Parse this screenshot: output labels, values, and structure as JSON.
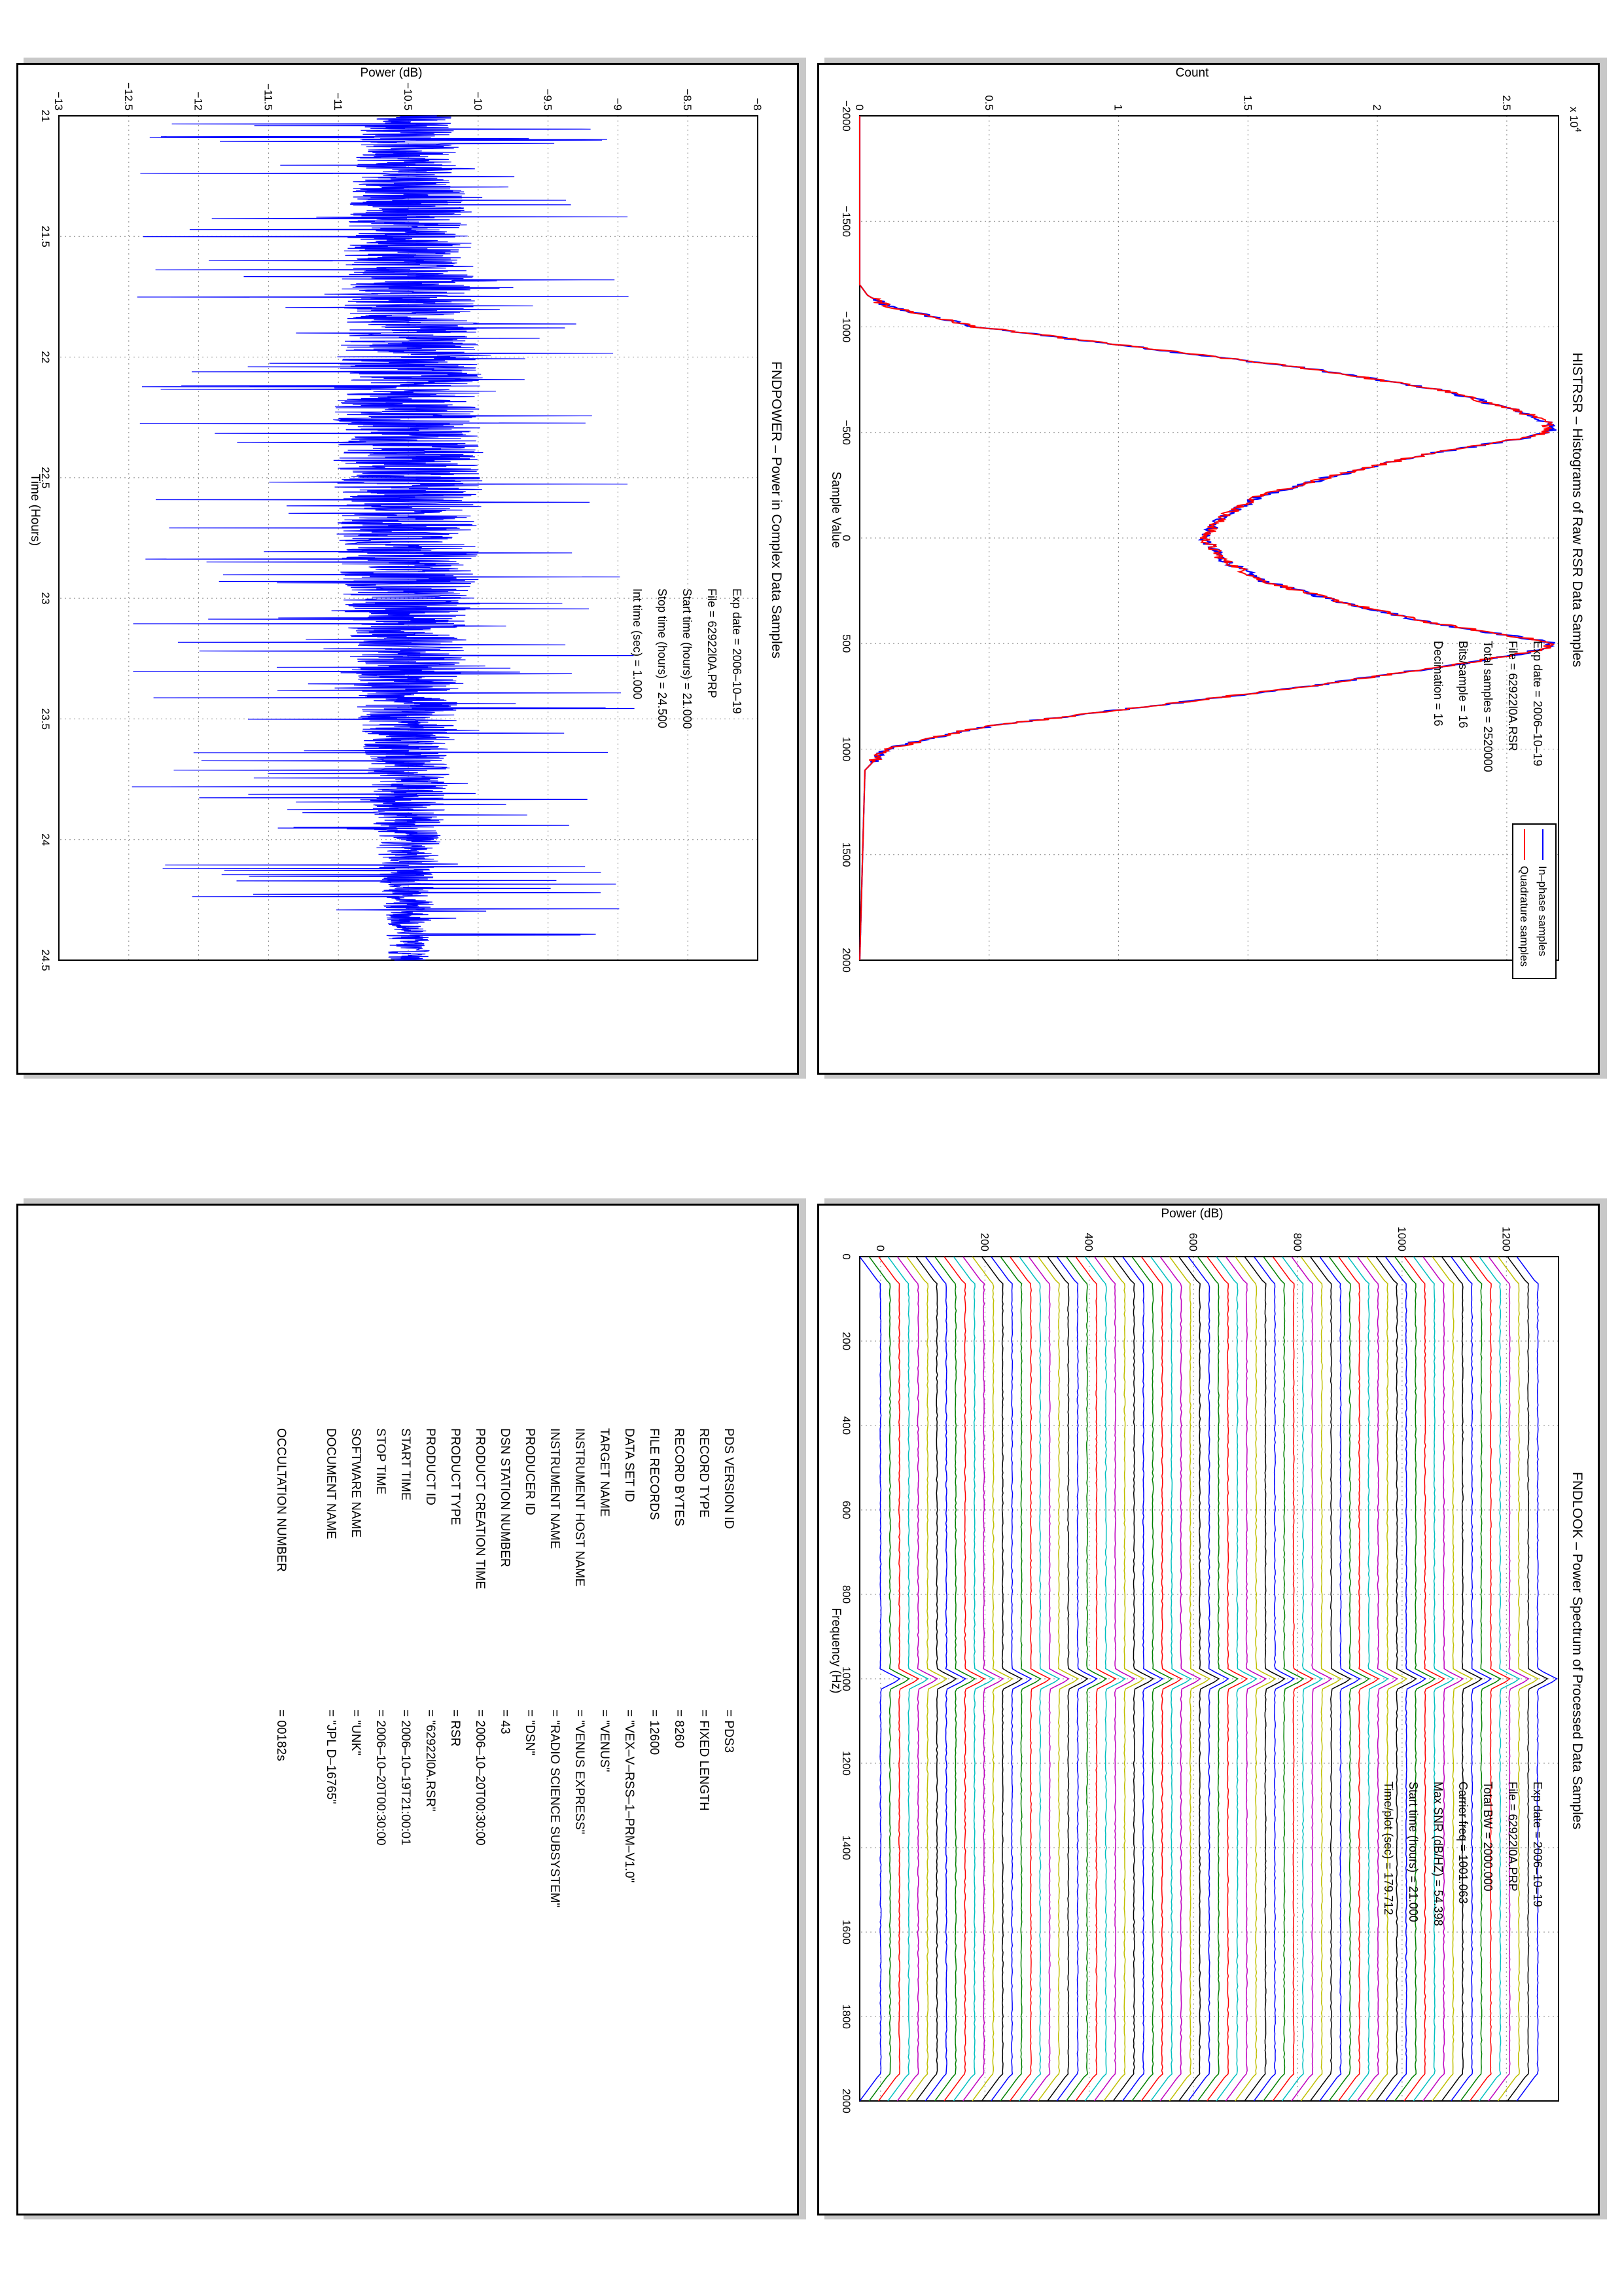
{
  "colors": {
    "inphase": "#0000ff",
    "quadrature": "#ff0000",
    "power": "#0000ff",
    "spectrum_palette": [
      "#0000ff",
      "#008000",
      "#ff0000",
      "#00bfbf",
      "#bf00bf",
      "#bfbf00",
      "#000000"
    ]
  },
  "chart_data": [
    {
      "type": "line",
      "title": "HISTRSR – Histograms of Raw RSR Data Samples",
      "xlabel": "Sample Value",
      "ylabel": "Count",
      "y_multiplier": "x 10",
      "y_multiplier_exp": "4",
      "xlim": [
        -2000,
        2000
      ],
      "ylim": [
        0,
        2.7
      ],
      "x_ticks": [
        "-2000",
        "-1500",
        "-1000",
        "-500",
        "0",
        "500",
        "1000",
        "1500",
        "2000"
      ],
      "y_ticks": [
        "0",
        "0.5",
        "1",
        "1.5",
        "2",
        "2.5"
      ],
      "grid": true,
      "legend_position": "top-right",
      "series": [
        {
          "name": "In–phase samples",
          "color": "blue",
          "x": [
            -2000,
            -1200,
            -1150,
            -1100,
            -1000,
            -900,
            -800,
            -700,
            -600,
            -550,
            -520,
            -500,
            -480,
            -450,
            -400,
            -300,
            -200,
            -100,
            0,
            100,
            200,
            300,
            400,
            450,
            480,
            500,
            520,
            550,
            600,
            700,
            800,
            900,
            1000,
            1100,
            2000
          ],
          "y": [
            0,
            0,
            0.03,
            0.1,
            0.45,
            1.1,
            1.75,
            2.25,
            2.55,
            2.65,
            2.68,
            2.66,
            2.6,
            2.45,
            2.2,
            1.85,
            1.55,
            1.4,
            1.33,
            1.4,
            1.55,
            1.85,
            2.2,
            2.45,
            2.6,
            2.68,
            2.66,
            2.55,
            2.3,
            1.75,
            1.1,
            0.45,
            0.1,
            0.02,
            0
          ]
        },
        {
          "name": "Quadrature samples",
          "color": "red",
          "x": [
            -2000,
            -1200,
            -1150,
            -1100,
            -1000,
            -900,
            -800,
            -700,
            -600,
            -550,
            -520,
            -500,
            -480,
            -450,
            -400,
            -300,
            -200,
            -100,
            0,
            100,
            200,
            300,
            400,
            450,
            480,
            500,
            520,
            550,
            600,
            700,
            800,
            900,
            1000,
            1100,
            2000
          ],
          "y": [
            0,
            0,
            0.03,
            0.1,
            0.45,
            1.1,
            1.75,
            2.25,
            2.55,
            2.65,
            2.67,
            2.65,
            2.6,
            2.45,
            2.2,
            1.85,
            1.55,
            1.4,
            1.33,
            1.4,
            1.55,
            1.85,
            2.2,
            2.45,
            2.6,
            2.67,
            2.66,
            2.55,
            2.3,
            1.75,
            1.1,
            0.45,
            0.1,
            0.02,
            0
          ]
        }
      ],
      "annotations": [
        {
          "label": "Exp date =",
          "value": "2006–10–19"
        },
        {
          "label": "File =",
          "value": "62922l0A.RSR"
        },
        {
          "label": "Total samples =",
          "value": "2520000"
        },
        {
          "label": "Bits/sample    =",
          "value": "16"
        },
        {
          "label": "Decimation     =",
          "value": "16"
        }
      ]
    },
    {
      "type": "line",
      "title": "FNDPOWER – Power in Complex Data Samples",
      "xlabel": "Time (Hours)",
      "ylabel": "Power (dB)",
      "xlim": [
        21,
        24.5
      ],
      "ylim": [
        -13,
        -8
      ],
      "x_ticks": [
        "21",
        "21.5",
        "22",
        "22.5",
        "23",
        "23.5",
        "24",
        "24.5"
      ],
      "y_ticks": [
        "-13",
        "-12.5",
        "-12",
        "-11.5",
        "-11",
        "-10.5",
        "-10",
        "-9.5",
        "-9",
        "-8.5",
        "-8"
      ],
      "grid": true,
      "series": [
        {
          "name": "",
          "color": "blue",
          "mean_db": -10.5,
          "noise_envelope": [
            -12.6,
            -8.7
          ]
        }
      ],
      "annotations": [
        {
          "label": "Exp date =",
          "value": "2006–10–19"
        },
        {
          "label": "File =",
          "value": "62922l0A.PRP"
        },
        {
          "label": "Start time (hours) =",
          "value": "21.000"
        },
        {
          "label": "Stop time (hours) =",
          "value": "24.500"
        },
        {
          "label": "Int time (sec) =",
          "value": "1.000"
        }
      ]
    },
    {
      "type": "line",
      "title": "FNDLOOK – Power Spectrum of Processed Data Samples",
      "xlabel": "Frequency (Hz)",
      "ylabel": "Power (dB)",
      "xlim": [
        0,
        2000
      ],
      "ylim": [
        -40,
        1300
      ],
      "x_ticks": [
        "0",
        "200",
        "400",
        "600",
        "800",
        "1000",
        "1200",
        "1400",
        "1600",
        "1800",
        "2000"
      ],
      "y_ticks": [
        "0",
        "200",
        "400",
        "600",
        "800",
        "1000",
        "1200"
      ],
      "grid": true,
      "stacked_series_count": 71,
      "stack_offset_db": 18,
      "carrier_peak_hz": 1001.063,
      "annotations": [
        {
          "label": "Exp date =",
          "value": "2006–10–19"
        },
        {
          "label": "File =",
          "value": "62922l0A.PRP"
        },
        {
          "label": "Total BW =",
          "value": "2000.000"
        },
        {
          "label": "Carrier freq =",
          "value": "1001.063"
        },
        {
          "label": "Max SNR (dB/HZ) =",
          "value": "54.398"
        },
        {
          "label": "Start time (hours) =",
          "value": "21.000"
        },
        {
          "label": "Time/plot (sec) =",
          "value": "179.712"
        }
      ]
    }
  ],
  "label_table": {
    "rows": [
      {
        "key": "PDS VERSION ID",
        "value": "=   PDS3"
      },
      {
        "key": "RECORD TYPE",
        "value": "=   FIXED LENGTH"
      },
      {
        "key": "RECORD BYTES",
        "value": "=   8260"
      },
      {
        "key": "FILE RECORDS",
        "value": "=   12600"
      },
      {
        "key": "DATA SET ID",
        "value": "=   \"VEX–V–RSS–1–PRM–V1.0\""
      },
      {
        "key": "TARGET NAME",
        "value": "=   \"VENUS\""
      },
      {
        "key": "INSTRUMENT HOST NAME",
        "value": "=   \"VENUS EXPRESS\""
      },
      {
        "key": "INSTRUMENT NAME",
        "value": "=   \"RADIO SCIENCE SUBSYSTEM\""
      },
      {
        "key": "PRODUCER ID",
        "value": "=   \"DSN\""
      },
      {
        "key": "DSN STATION NUMBER",
        "value": "=   43"
      },
      {
        "key": "PRODUCT CREATION TIME",
        "value": "=   2006–10–20T00:30:00"
      },
      {
        "key": "PRODUCT TYPE",
        "value": "=   RSR"
      },
      {
        "key": "PRODUCT ID",
        "value": "=   \"62922l0A.RSR\""
      },
      {
        "key": "START TIME",
        "value": "=   2006–10–19T21:00:01"
      },
      {
        "key": "STOP TIME",
        "value": "=   2006–10–20T00:30:00"
      },
      {
        "key": "SOFTWARE NAME",
        "value": "=   \"UNK\""
      },
      {
        "key": "DOCUMENT NAME",
        "value": "=   \"JPL D–16765\""
      },
      {
        "key": "OCCULTATION NUMBER",
        "value": "=   00182s"
      }
    ]
  }
}
